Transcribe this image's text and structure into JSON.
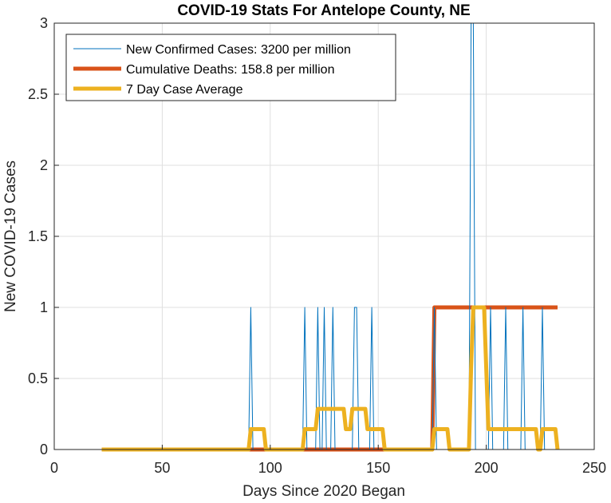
{
  "chart_data": {
    "type": "line",
    "title": "COVID-19 Stats For Antelope County, NE",
    "xlabel": "Days Since 2020 Began",
    "ylabel": "New COVID-19 Cases",
    "xlim": [
      0,
      250
    ],
    "ylim": [
      0,
      3
    ],
    "xticks": [
      0,
      50,
      100,
      150,
      200,
      250
    ],
    "yticks": [
      0,
      0.5,
      1,
      1.5,
      2,
      2.5,
      3
    ],
    "xtick_labels": [
      "0",
      "50",
      "100",
      "150",
      "200",
      "250"
    ],
    "ytick_labels": [
      "0",
      "0.5",
      "1",
      "1.5",
      "2",
      "2.5",
      "3"
    ],
    "grid": true,
    "legend_position": "top-left",
    "series": [
      {
        "name": "New Confirmed Cases: 3200 per million",
        "color": "#0072BD",
        "line_width": "thin",
        "x": [
          22,
          90,
          91,
          92,
          115,
          116,
          117,
          121,
          122,
          123,
          124,
          125,
          126,
          128,
          129,
          130,
          138,
          139,
          140,
          141,
          146,
          147,
          148,
          175,
          176,
          177,
          192,
          193,
          194,
          195,
          201,
          202,
          203,
          208,
          209,
          210,
          216,
          217,
          218,
          225,
          226,
          227,
          233
        ],
        "y": [
          0,
          0,
          1,
          0,
          0,
          1,
          0,
          0,
          1,
          0,
          0,
          1,
          0,
          0,
          1,
          0,
          0,
          1,
          1,
          0,
          0,
          1,
          0,
          0,
          1,
          0,
          0,
          3,
          3,
          0,
          0,
          1,
          0,
          0,
          1,
          0,
          0,
          1,
          0,
          0,
          1,
          0,
          0
        ]
      },
      {
        "name": "Cumulative Deaths: 158.8 per million",
        "color": "#D95319",
        "line_width": "thick",
        "x": [
          22,
          175,
          176,
          233
        ],
        "y": [
          0,
          0,
          1,
          1
        ]
      },
      {
        "name": "7 Day Case Average",
        "color": "#EDB120",
        "line_width": "thick",
        "x": [
          22,
          90,
          91,
          97,
          98,
          115,
          116,
          120,
          121,
          122,
          123,
          127,
          128,
          134,
          135,
          137,
          138,
          144,
          145,
          152,
          153,
          175,
          176,
          182,
          183,
          192,
          193,
          194,
          199,
          200,
          201,
          202,
          223,
          224,
          225,
          226,
          232,
          233
        ],
        "y": [
          0,
          0,
          0.143,
          0.143,
          0,
          0,
          0.143,
          0.143,
          0.143,
          0.286,
          0.286,
          0.286,
          0.286,
          0.286,
          0.143,
          0.143,
          0.286,
          0.286,
          0.143,
          0.143,
          0,
          0,
          0.143,
          0.143,
          0,
          0,
          0.571,
          1,
          1,
          0.571,
          0.143,
          0.143,
          0.143,
          0,
          0,
          0.143,
          0.143,
          0
        ]
      }
    ]
  }
}
